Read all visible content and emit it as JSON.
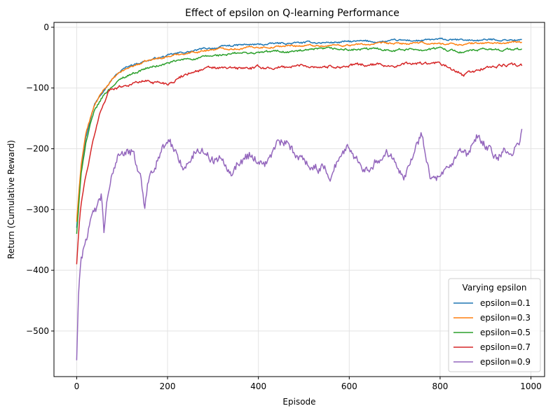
{
  "chart_data": {
    "type": "line",
    "title": "Effect of epsilon on Q-learning Performance",
    "xlabel": "Episode",
    "ylabel": "Return (Cumulative Reward)",
    "xlim": [
      -50,
      1030
    ],
    "ylim": [
      -575,
      8
    ],
    "xticks": [
      0,
      200,
      400,
      600,
      800,
      1000
    ],
    "yticks": [
      0,
      -100,
      -200,
      -300,
      -400,
      -500
    ],
    "grid": true,
    "legend": {
      "title": "Varying epsilon",
      "placement": "lower-right"
    },
    "series": [
      {
        "name": "epsilon=0.1",
        "color": "#1f77b4",
        "points": [
          [
            0,
            -330
          ],
          [
            5,
            -280
          ],
          [
            10,
            -230
          ],
          [
            20,
            -180
          ],
          [
            30,
            -150
          ],
          [
            40,
            -125
          ],
          [
            50,
            -112
          ],
          [
            60,
            -100
          ],
          [
            80,
            -82
          ],
          [
            100,
            -70
          ],
          [
            120,
            -62
          ],
          [
            150,
            -55
          ],
          [
            200,
            -47
          ],
          [
            250,
            -40
          ],
          [
            300,
            -34
          ],
          [
            350,
            -30
          ],
          [
            400,
            -29
          ],
          [
            450,
            -27
          ],
          [
            500,
            -26
          ],
          [
            550,
            -25
          ],
          [
            600,
            -24
          ],
          [
            650,
            -24
          ],
          [
            700,
            -23
          ],
          [
            750,
            -22
          ],
          [
            800,
            -21
          ],
          [
            850,
            -22
          ],
          [
            900,
            -21
          ],
          [
            950,
            -20
          ],
          [
            980,
            -21
          ]
        ],
        "noise": 2.5
      },
      {
        "name": "epsilon=0.3",
        "color": "#ff7f0e",
        "points": [
          [
            0,
            -320
          ],
          [
            5,
            -270
          ],
          [
            10,
            -225
          ],
          [
            20,
            -175
          ],
          [
            30,
            -150
          ],
          [
            40,
            -128
          ],
          [
            50,
            -115
          ],
          [
            60,
            -103
          ],
          [
            80,
            -85
          ],
          [
            100,
            -73
          ],
          [
            120,
            -65
          ],
          [
            150,
            -57
          ],
          [
            200,
            -48
          ],
          [
            250,
            -41
          ],
          [
            300,
            -36
          ],
          [
            350,
            -34
          ],
          [
            400,
            -32
          ],
          [
            450,
            -31
          ],
          [
            500,
            -30
          ],
          [
            550,
            -30
          ],
          [
            600,
            -29
          ],
          [
            650,
            -28
          ],
          [
            700,
            -28
          ],
          [
            750,
            -27
          ],
          [
            800,
            -27
          ],
          [
            850,
            -28
          ],
          [
            900,
            -26
          ],
          [
            950,
            -26
          ],
          [
            980,
            -25
          ]
        ],
        "noise": 2.5
      },
      {
        "name": "epsilon=0.5",
        "color": "#2ca02c",
        "points": [
          [
            0,
            -340
          ],
          [
            5,
            -290
          ],
          [
            10,
            -240
          ],
          [
            20,
            -190
          ],
          [
            30,
            -160
          ],
          [
            40,
            -138
          ],
          [
            50,
            -125
          ],
          [
            60,
            -112
          ],
          [
            80,
            -95
          ],
          [
            100,
            -84
          ],
          [
            120,
            -76
          ],
          [
            150,
            -68
          ],
          [
            200,
            -60
          ],
          [
            250,
            -52
          ],
          [
            300,
            -48
          ],
          [
            350,
            -44
          ],
          [
            400,
            -42
          ],
          [
            450,
            -40
          ],
          [
            500,
            -39
          ],
          [
            550,
            -38
          ],
          [
            600,
            -37
          ],
          [
            650,
            -37
          ],
          [
            700,
            -36
          ],
          [
            750,
            -36
          ],
          [
            800,
            -35
          ],
          [
            850,
            -40
          ],
          [
            900,
            -38
          ],
          [
            950,
            -36
          ],
          [
            980,
            -37
          ]
        ],
        "noise": 3
      },
      {
        "name": "epsilon=0.7",
        "color": "#d62728",
        "points": [
          [
            0,
            -390
          ],
          [
            5,
            -330
          ],
          [
            10,
            -290
          ],
          [
            20,
            -245
          ],
          [
            30,
            -210
          ],
          [
            40,
            -175
          ],
          [
            50,
            -145
          ],
          [
            60,
            -125
          ],
          [
            70,
            -105
          ],
          [
            80,
            -100
          ],
          [
            100,
            -96
          ],
          [
            120,
            -92
          ],
          [
            150,
            -88
          ],
          [
            200,
            -92
          ],
          [
            230,
            -80
          ],
          [
            260,
            -70
          ],
          [
            300,
            -68
          ],
          [
            350,
            -69
          ],
          [
            400,
            -67
          ],
          [
            450,
            -66
          ],
          [
            500,
            -63
          ],
          [
            550,
            -64
          ],
          [
            600,
            -63
          ],
          [
            650,
            -62
          ],
          [
            700,
            -62
          ],
          [
            750,
            -60
          ],
          [
            800,
            -61
          ],
          [
            830,
            -72
          ],
          [
            850,
            -80
          ],
          [
            870,
            -75
          ],
          [
            900,
            -66
          ],
          [
            950,
            -62
          ],
          [
            980,
            -64
          ]
        ],
        "noise": 4
      },
      {
        "name": "epsilon=0.9",
        "color": "#9467bd",
        "points": [
          [
            0,
            -548
          ],
          [
            4,
            -440
          ],
          [
            8,
            -390
          ],
          [
            15,
            -360
          ],
          [
            25,
            -330
          ],
          [
            35,
            -315
          ],
          [
            45,
            -300
          ],
          [
            55,
            -285
          ],
          [
            60,
            -340
          ],
          [
            65,
            -300
          ],
          [
            80,
            -245
          ],
          [
            90,
            -210
          ],
          [
            100,
            -200
          ],
          [
            120,
            -205
          ],
          [
            140,
            -245
          ],
          [
            150,
            -295
          ],
          [
            160,
            -240
          ],
          [
            180,
            -205
          ],
          [
            200,
            -190
          ],
          [
            220,
            -210
          ],
          [
            240,
            -230
          ],
          [
            260,
            -205
          ],
          [
            280,
            -200
          ],
          [
            300,
            -215
          ],
          [
            320,
            -210
          ],
          [
            340,
            -225
          ],
          [
            360,
            -215
          ],
          [
            380,
            -205
          ],
          [
            400,
            -215
          ],
          [
            420,
            -220
          ],
          [
            440,
            -195
          ],
          [
            460,
            -195
          ],
          [
            480,
            -215
          ],
          [
            500,
            -215
          ],
          [
            520,
            -225
          ],
          [
            540,
            -230
          ],
          [
            560,
            -240
          ],
          [
            580,
            -205
          ],
          [
            600,
            -200
          ],
          [
            620,
            -215
          ],
          [
            640,
            -225
          ],
          [
            660,
            -210
          ],
          [
            680,
            -200
          ],
          [
            700,
            -210
          ],
          [
            720,
            -230
          ],
          [
            740,
            -205
          ],
          [
            760,
            -175
          ],
          [
            780,
            -240
          ],
          [
            800,
            -250
          ],
          [
            820,
            -245
          ],
          [
            840,
            -215
          ],
          [
            860,
            -225
          ],
          [
            880,
            -190
          ],
          [
            900,
            -200
          ],
          [
            920,
            -215
          ],
          [
            940,
            -210
          ],
          [
            960,
            -215
          ],
          [
            975,
            -190
          ],
          [
            980,
            -160
          ]
        ],
        "noise": 13
      }
    ]
  }
}
